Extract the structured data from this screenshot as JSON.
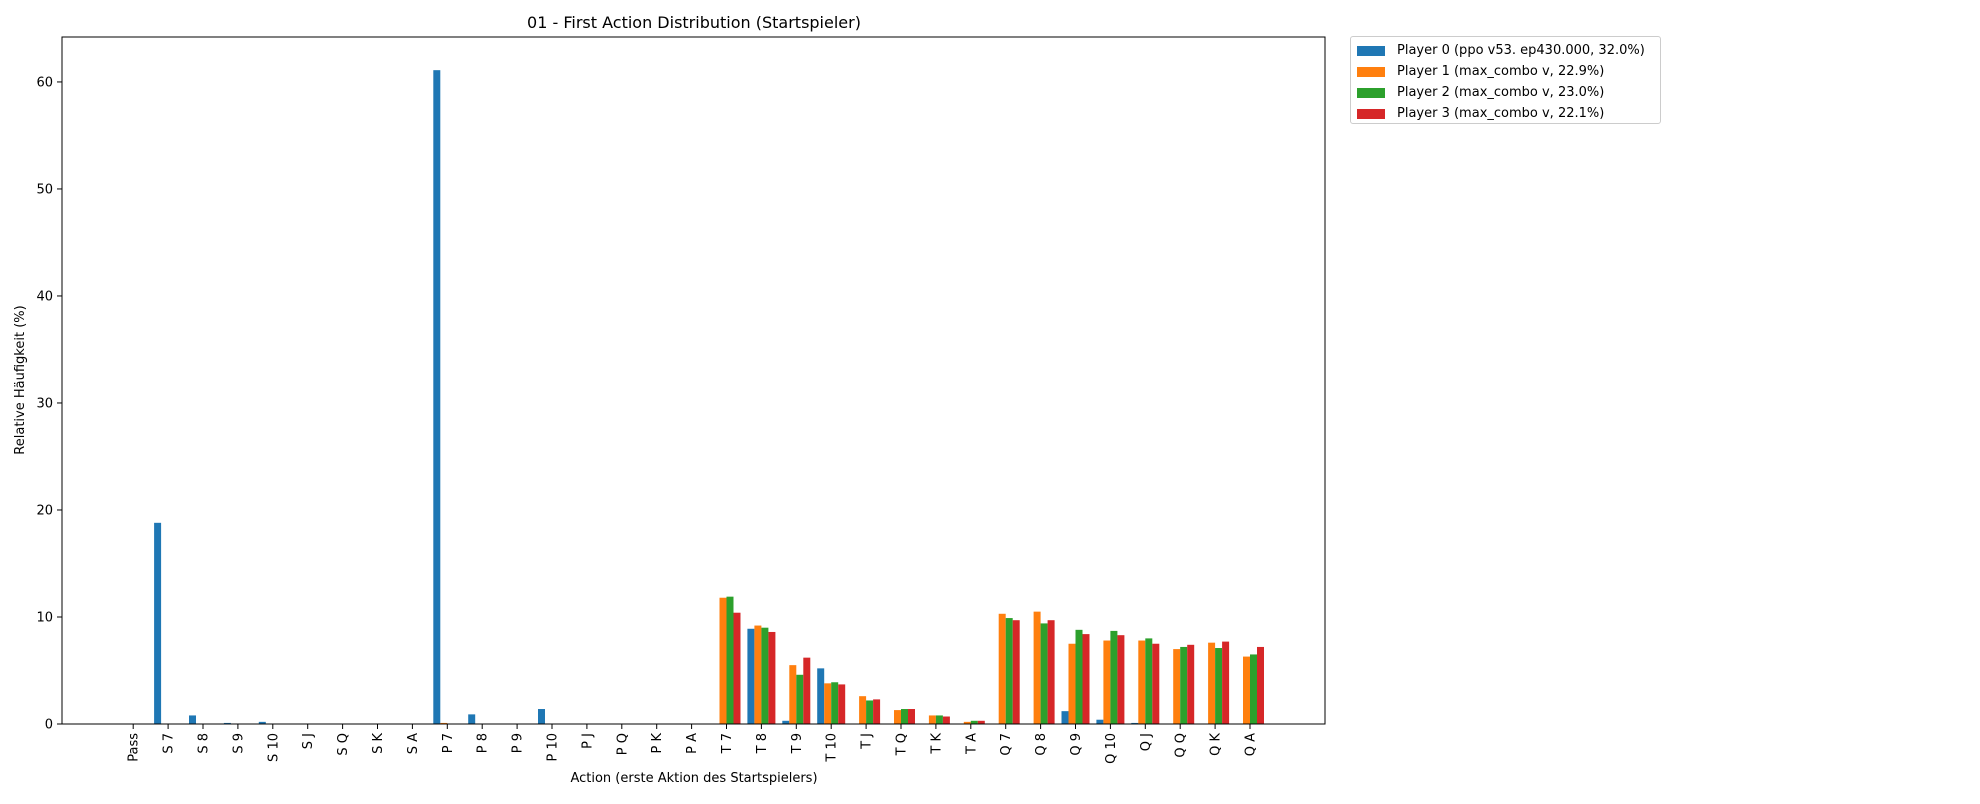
{
  "chart_data": {
    "type": "bar",
    "title": "01 - First Action Distribution (Startspieler)",
    "xlabel": "Action (erste Aktion des Startspielers)",
    "ylabel": "Relative Häufigkeit (%)",
    "ylim": [
      0,
      64.2
    ],
    "yticks": [
      0,
      10,
      20,
      30,
      40,
      50,
      60
    ],
    "grid": false,
    "legend_position": "outside top-right",
    "categories": [
      "Pass",
      "S 7",
      "S 8",
      "S 9",
      "S 10",
      "S J",
      "S Q",
      "S K",
      "S A",
      "P 7",
      "P 8",
      "P 9",
      "P 10",
      "P J",
      "P Q",
      "P K",
      "P A",
      "T 7",
      "T 8",
      "T 9",
      "T 10",
      "T J",
      "T Q",
      "T K",
      "T A",
      "Q 7",
      "Q 8",
      "Q 9",
      "Q 10",
      "Q J",
      "Q Q",
      "Q K",
      "Q A"
    ],
    "series": [
      {
        "name": "Player 0 (ppo v53. ep430.000, 32.0%)",
        "color": "#1f77b4",
        "values": [
          0,
          18.8,
          0.8,
          0.1,
          0.2,
          0,
          0,
          0,
          0,
          61.1,
          0.9,
          0,
          1.4,
          0,
          0,
          0,
          0,
          0,
          8.9,
          0.3,
          5.2,
          0,
          0,
          0,
          0,
          0,
          0,
          1.2,
          0.4,
          0.1,
          0,
          0,
          0
        ]
      },
      {
        "name": "Player 1 (max_combo v, 22.9%)",
        "color": "#ff7f0e",
        "values": [
          0,
          0,
          0,
          0,
          0,
          0,
          0,
          0,
          0,
          0.1,
          0,
          0,
          0,
          0,
          0,
          0,
          0,
          11.8,
          9.2,
          5.5,
          3.8,
          2.6,
          1.3,
          0.8,
          0.2,
          10.3,
          10.5,
          7.5,
          7.8,
          7.8,
          7.0,
          7.6,
          6.3
        ]
      },
      {
        "name": "Player 2 (max_combo v, 23.0%)",
        "color": "#2ca02c",
        "values": [
          0,
          0,
          0,
          0,
          0,
          0,
          0,
          0,
          0,
          0,
          0,
          0,
          0,
          0,
          0,
          0,
          0,
          11.9,
          9.0,
          4.6,
          3.9,
          2.2,
          1.4,
          0.8,
          0.3,
          9.9,
          9.4,
          8.8,
          8.7,
          8.0,
          7.2,
          7.1,
          6.5
        ]
      },
      {
        "name": "Player 3 (max_combo v, 22.1%)",
        "color": "#d62728",
        "values": [
          0,
          0,
          0,
          0,
          0,
          0,
          0,
          0,
          0,
          0,
          0,
          0,
          0,
          0,
          0,
          0,
          0,
          10.4,
          8.6,
          6.2,
          3.7,
          2.3,
          1.4,
          0.7,
          0.3,
          9.7,
          9.7,
          8.4,
          8.3,
          7.5,
          7.4,
          7.7,
          7.2
        ]
      }
    ]
  }
}
